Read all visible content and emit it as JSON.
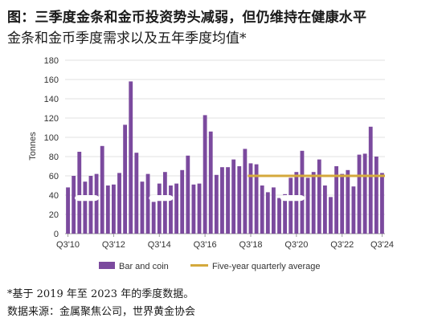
{
  "header": {
    "title": "图：三季度金条和金币投资势头减弱，但仍维持在健康水平",
    "subtitle": "金条和金币季度需求以及五年季度均值*"
  },
  "chart_data": {
    "type": "bar",
    "ylabel": "Tonnes",
    "ylim": [
      0,
      180
    ],
    "yticks": [
      0,
      20,
      40,
      60,
      80,
      100,
      120,
      140,
      160,
      180
    ],
    "x_tick_labels": [
      "Q3'10",
      "Q3'12",
      "Q3'14",
      "Q3'16",
      "Q3'18",
      "Q3'20",
      "Q3'22",
      "Q3'24"
    ],
    "series": [
      {
        "name": "Bar and coin",
        "color": "#7b4a9e",
        "values": [
          48,
          60,
          85,
          54,
          60,
          62,
          91,
          50,
          51,
          63,
          113,
          158,
          84,
          54,
          62,
          33,
          52,
          64,
          50,
          52,
          66,
          81,
          51,
          52,
          123,
          106,
          61,
          69,
          69,
          77,
          70,
          88,
          73,
          72,
          50,
          43,
          48,
          37,
          41,
          58,
          64,
          86,
          58,
          64,
          77,
          50,
          38,
          70,
          62,
          66,
          49,
          82,
          83,
          111,
          80,
          63
        ]
      },
      {
        "name": "Five-year quarterly average",
        "color": "#d4a93c",
        "value": 60,
        "from_index": 32
      }
    ]
  },
  "notes": {
    "footnote": "*基于 2019 年至 2023 年的季度数据。",
    "source": "数据来源：金属聚焦公司，世界黄金协会"
  }
}
